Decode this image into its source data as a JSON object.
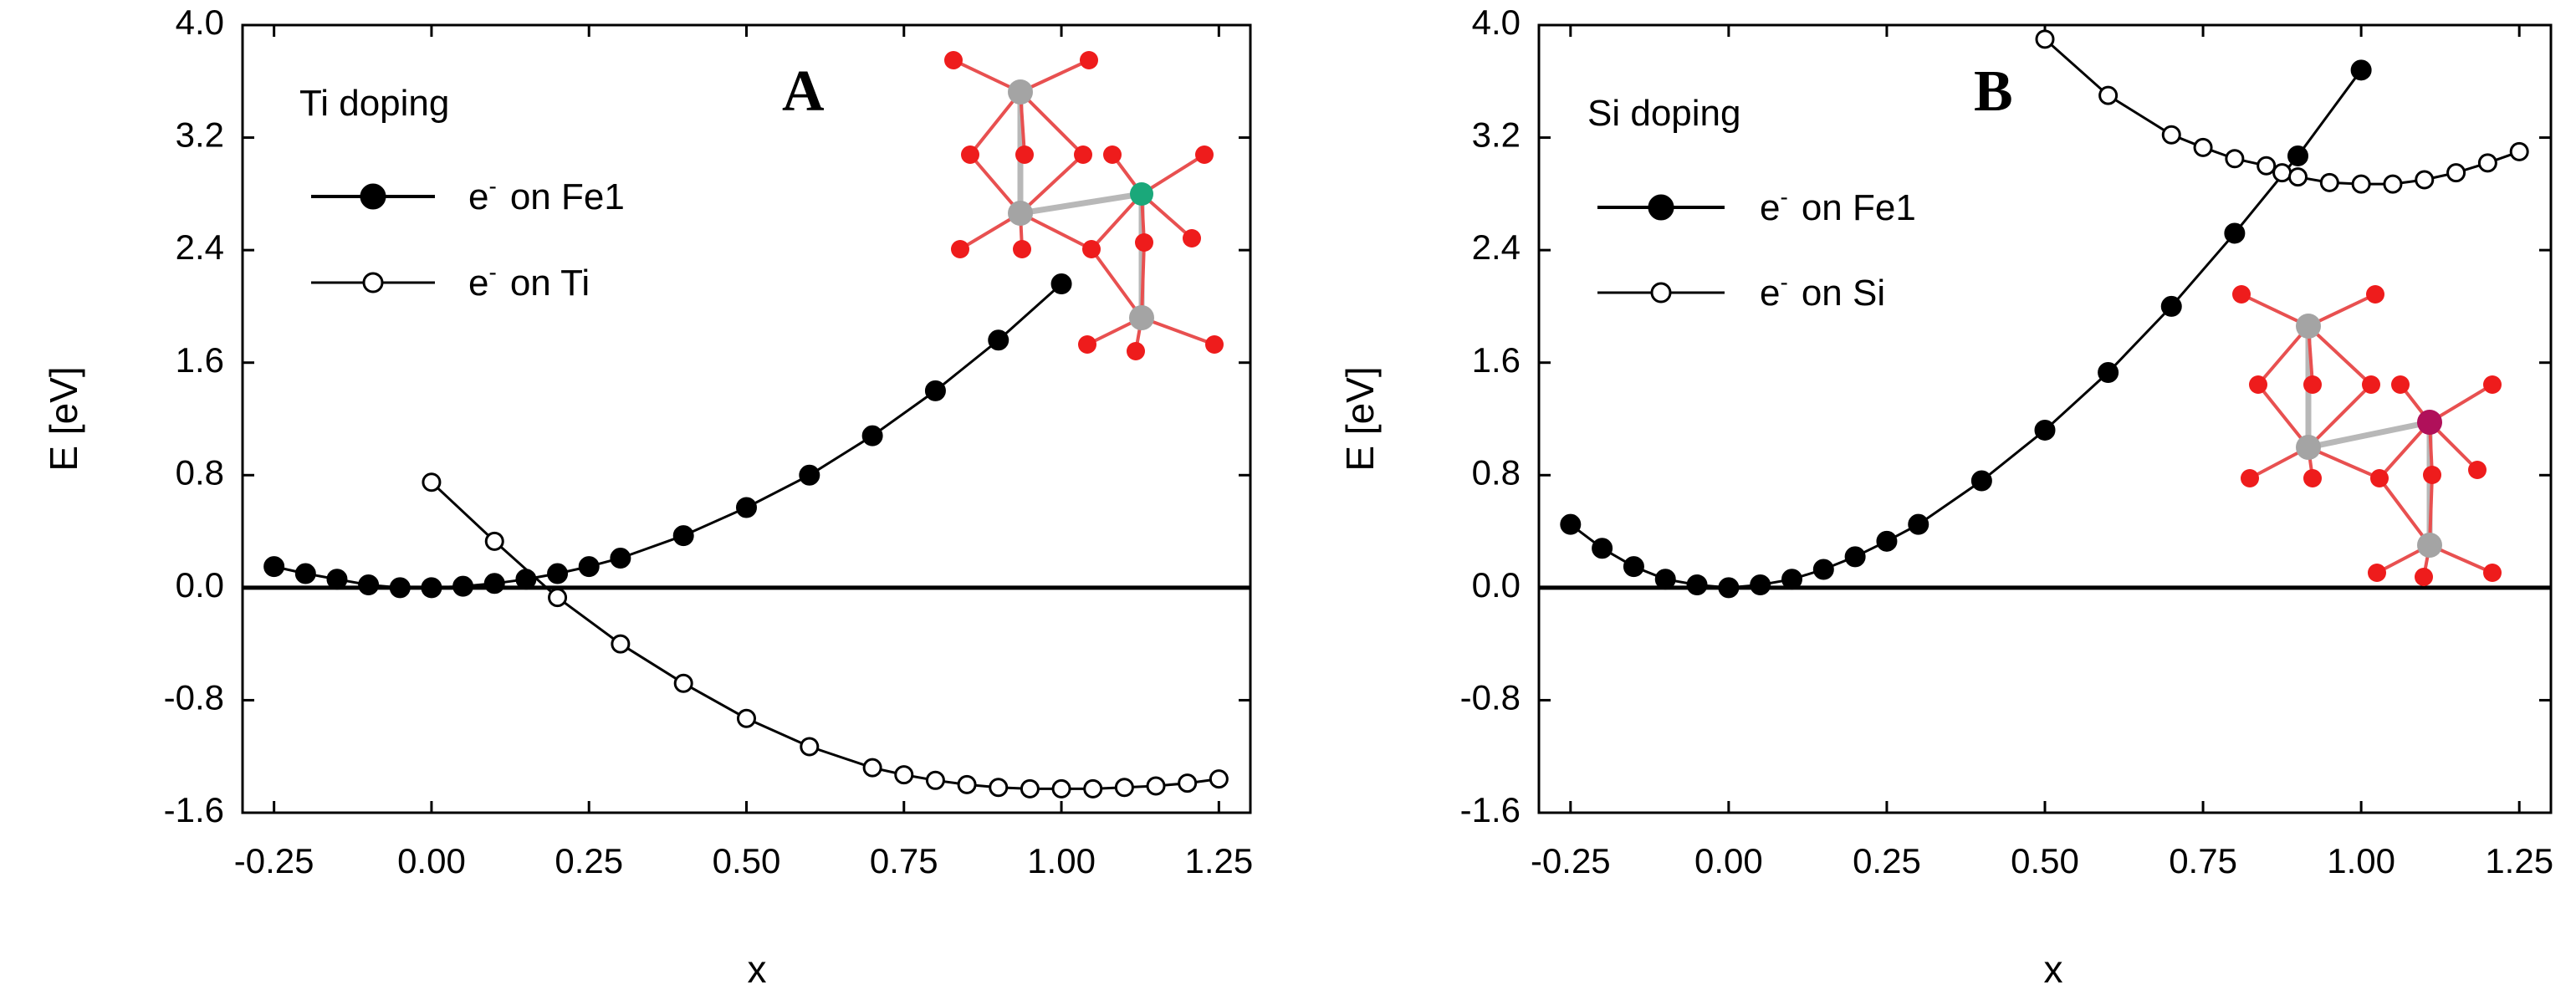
{
  "chart_data": [
    {
      "type": "line",
      "panel_letter": "A",
      "title": "Ti doping",
      "xlabel": "x",
      "ylabel": "E [eV]",
      "xlim": [
        -0.3,
        1.3
      ],
      "ylim": [
        -1.6,
        4.0
      ],
      "xticks": [
        "-0.25",
        "0.00",
        "0.25",
        "0.50",
        "0.75",
        "1.00",
        "1.25"
      ],
      "yticks": [
        "4.0",
        "3.2",
        "2.4",
        "1.6",
        "0.8",
        "0.0",
        "-0.8",
        "-1.6"
      ],
      "legend_position": "top-left",
      "zero_line": true,
      "inset": "Fe-O cluster with Ti dopant",
      "series": [
        {
          "name": "on Fe1",
          "legend_prefix": "e",
          "legend_sup": "-",
          "marker": "filled",
          "x": [
            -0.25,
            -0.2,
            -0.15,
            -0.1,
            -0.05,
            0.0,
            0.05,
            0.1,
            0.15,
            0.2,
            0.25,
            0.3,
            0.4,
            0.5,
            0.6,
            0.7,
            0.8,
            0.9,
            1.0
          ],
          "y": [
            0.15,
            0.1,
            0.06,
            0.02,
            0.0,
            0.0,
            0.01,
            0.03,
            0.06,
            0.1,
            0.15,
            0.21,
            0.37,
            0.57,
            0.8,
            1.08,
            1.4,
            1.76,
            2.16
          ]
        },
        {
          "name": "on Ti",
          "legend_prefix": "e",
          "legend_sup": "-",
          "marker": "open",
          "x": [
            0.0,
            0.1,
            0.2,
            0.3,
            0.4,
            0.5,
            0.6,
            0.7,
            0.75,
            0.8,
            0.85,
            0.9,
            0.95,
            1.0,
            1.05,
            1.1,
            1.15,
            1.2,
            1.25
          ],
          "y": [
            0.75,
            0.33,
            -0.07,
            -0.4,
            -0.68,
            -0.93,
            -1.13,
            -1.28,
            -1.33,
            -1.37,
            -1.4,
            -1.42,
            -1.43,
            -1.43,
            -1.43,
            -1.42,
            -1.41,
            -1.39,
            -1.36
          ]
        }
      ]
    },
    {
      "type": "line",
      "panel_letter": "B",
      "title": "Si doping",
      "xlabel": "x",
      "ylabel": "E [eV]",
      "xlim": [
        -0.3,
        1.3
      ],
      "ylim": [
        -1.6,
        4.0
      ],
      "xticks": [
        "-0.25",
        "0.00",
        "0.25",
        "0.50",
        "0.75",
        "1.00",
        "1.25"
      ],
      "yticks": [
        "4.0",
        "3.2",
        "2.4",
        "1.6",
        "0.8",
        "0.0",
        "-0.8",
        "-1.6"
      ],
      "legend_position": "top-left",
      "zero_line": true,
      "inset": "Fe-O cluster with Si dopant",
      "series": [
        {
          "name": "on Fe1",
          "legend_prefix": "e",
          "legend_sup": "-",
          "marker": "filled",
          "x": [
            -0.25,
            -0.2,
            -0.15,
            -0.1,
            -0.05,
            0.0,
            0.05,
            0.1,
            0.15,
            0.2,
            0.25,
            0.3,
            0.4,
            0.5,
            0.6,
            0.7,
            0.8,
            0.9,
            1.0
          ],
          "y": [
            0.45,
            0.28,
            0.15,
            0.06,
            0.02,
            0.0,
            0.02,
            0.06,
            0.13,
            0.22,
            0.33,
            0.45,
            0.76,
            1.12,
            1.53,
            2.0,
            2.52,
            3.07,
            3.68
          ]
        },
        {
          "name": "on Si",
          "legend_prefix": "e",
          "legend_sup": "-",
          "marker": "open",
          "x": [
            0.5,
            0.6,
            0.7,
            0.75,
            0.8,
            0.85,
            0.875,
            0.9,
            0.95,
            1.0,
            1.05,
            1.1,
            1.15,
            1.2,
            1.25
          ],
          "y": [
            3.9,
            3.5,
            3.22,
            3.13,
            3.05,
            3.0,
            2.95,
            2.92,
            2.88,
            2.87,
            2.87,
            2.9,
            2.95,
            3.02,
            3.1
          ]
        }
      ]
    }
  ]
}
